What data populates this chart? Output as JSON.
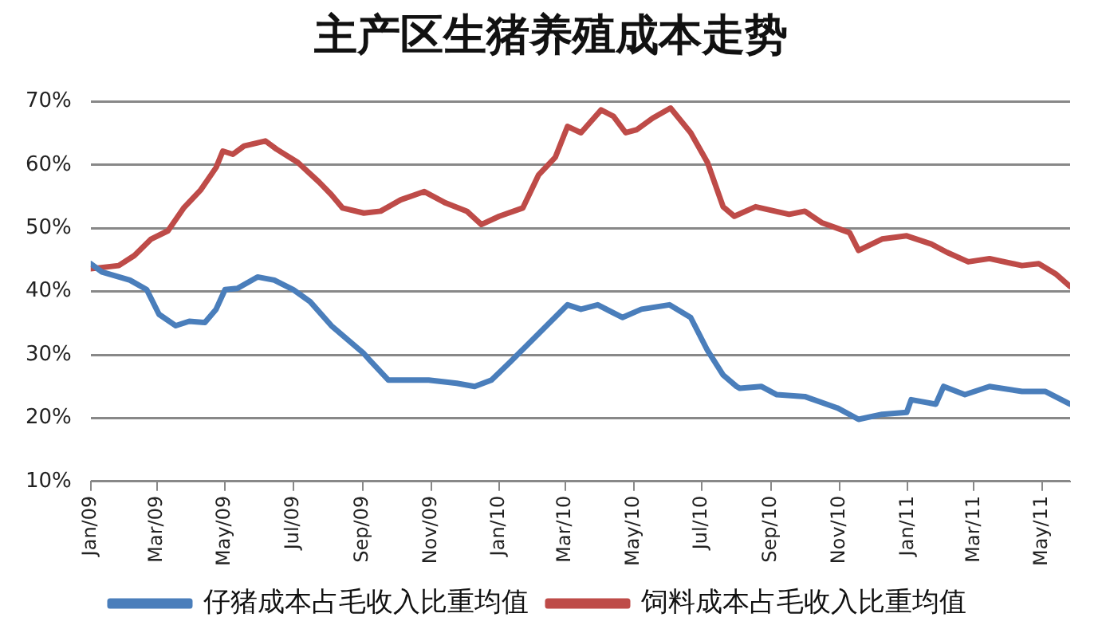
{
  "chart_data": {
    "type": "line",
    "title": "主产区生猪养殖成本走势",
    "xlim": [
      "2009-01-01",
      "2011-05-26"
    ],
    "xticks": [
      {
        "value": "2009-01",
        "label": "Jan/09"
      },
      {
        "value": "2009-03",
        "label": "Mar/09"
      },
      {
        "value": "2009-05",
        "label": "May/09"
      },
      {
        "value": "2009-07",
        "label": "Jul/09"
      },
      {
        "value": "2009-09",
        "label": "Sep/09"
      },
      {
        "value": "2009-11",
        "label": "Nov/09"
      },
      {
        "value": "2010-01",
        "label": "Jan/10"
      },
      {
        "value": "2010-03",
        "label": "Mar/10"
      },
      {
        "value": "2010-05",
        "label": "May/10"
      },
      {
        "value": "2010-07",
        "label": "Jul/10"
      },
      {
        "value": "2010-09",
        "label": "Sep/10"
      },
      {
        "value": "2010-11",
        "label": "Nov/10"
      },
      {
        "value": "2011-01",
        "label": "Jan/11"
      },
      {
        "value": "2011-03",
        "label": "Mar/11"
      },
      {
        "value": "2011-05",
        "label": "May/11"
      }
    ],
    "ylim": [
      10,
      70
    ],
    "yticks": [
      {
        "value": 10,
        "label": "10%"
      },
      {
        "value": 20,
        "label": "20%"
      },
      {
        "value": 30,
        "label": "30%"
      },
      {
        "value": 40,
        "label": "40%"
      },
      {
        "value": 50,
        "label": "50%"
      },
      {
        "value": 60,
        "label": "60%"
      },
      {
        "value": 70,
        "label": "70%"
      }
    ],
    "grid": "y",
    "legend": "bottom",
    "marker": "none",
    "line_style": "solid",
    "series": [
      {
        "name": "仔猪成本占毛收入比重均值",
        "color": "#4a7ebb",
        "x": [
          "2009-01-01",
          "2009-01-11",
          "2009-02-05",
          "2009-02-20",
          "2009-03-03",
          "2009-03-18",
          "2009-03-30",
          "2009-04-13",
          "2009-04-23",
          "2009-05-01",
          "2009-05-12",
          "2009-05-30",
          "2009-06-14",
          "2009-07-01",
          "2009-07-16",
          "2009-08-04",
          "2009-09-02",
          "2009-09-06",
          "2009-09-24",
          "2009-10-30",
          "2009-11-24",
          "2009-12-10",
          "2009-12-25",
          "2010-01-11",
          "2010-02-05",
          "2010-03-03",
          "2010-03-15",
          "2010-03-30",
          "2010-04-21",
          "2010-05-08",
          "2010-06-02",
          "2010-06-21",
          "2010-07-06",
          "2010-07-20",
          "2010-08-01",
          "2010-08-04",
          "2010-08-23",
          "2010-09-06",
          "2010-10-01",
          "2010-10-30",
          "2010-11-18",
          "2010-12-09",
          "2010-12-31",
          "2011-01-04",
          "2011-01-26",
          "2011-02-02",
          "2011-02-21",
          "2011-03-15",
          "2011-04-13",
          "2011-05-04",
          "2011-05-26"
        ],
        "values": [
          44.4,
          43.1,
          41.8,
          40.3,
          36.4,
          34.6,
          35.3,
          35.1,
          37.2,
          40.3,
          40.5,
          42.3,
          41.8,
          40.3,
          38.4,
          34.6,
          30.2,
          29.4,
          26,
          26,
          25.5,
          25,
          26,
          28.9,
          33.3,
          37.9,
          37.2,
          37.9,
          35.9,
          37.2,
          37.9,
          35.9,
          30.7,
          26.8,
          25,
          24.7,
          25,
          23.7,
          23.4,
          21.6,
          19.8,
          20.6,
          20.9,
          22.9,
          22.2,
          25,
          23.7,
          25,
          24.2,
          24.2,
          22.2
        ]
      },
      {
        "name": "饲料成本占毛收入比重均值",
        "color": "#be4b48",
        "x": [
          "2009-01-01",
          "2009-01-26",
          "2009-02-09",
          "2009-02-24",
          "2009-03-11",
          "2009-03-25",
          "2009-04-09",
          "2009-04-23",
          "2009-04-29",
          "2009-05-08",
          "2009-05-18",
          "2009-06-06",
          "2009-06-16",
          "2009-07-05",
          "2009-07-24",
          "2009-08-04",
          "2009-08-14",
          "2009-09-02",
          "2009-09-17",
          "2009-10-05",
          "2009-10-26",
          "2009-11-14",
          "2009-12-03",
          "2009-12-16",
          "2010-01-01",
          "2010-01-22",
          "2010-02-05",
          "2010-02-20",
          "2010-03-03",
          "2010-03-15",
          "2010-04-02",
          "2010-04-13",
          "2010-04-24",
          "2010-05-04",
          "2010-05-18",
          "2010-06-03",
          "2010-06-21",
          "2010-07-06",
          "2010-07-20",
          "2010-07-30",
          "2010-08-18",
          "2010-09-17",
          "2010-10-01",
          "2010-10-16",
          "2010-11-10",
          "2010-11-18",
          "2010-12-09",
          "2010-12-31",
          "2011-01-22",
          "2011-02-05",
          "2011-02-24",
          "2011-03-15",
          "2011-04-13",
          "2011-04-28",
          "2011-05-13",
          "2011-05-26"
        ],
        "values": [
          43.6,
          44.1,
          45.7,
          48.3,
          49.6,
          53.2,
          56,
          59.6,
          62.2,
          61.7,
          63,
          63.8,
          62.5,
          60.4,
          57.3,
          55.3,
          53.2,
          52.4,
          52.7,
          54.5,
          55.8,
          54,
          52.7,
          50.6,
          51.9,
          53.2,
          58.4,
          61.2,
          66.1,
          65.1,
          68.7,
          67.7,
          65.1,
          65.6,
          67.4,
          69,
          65.1,
          60.4,
          53.4,
          51.9,
          53.4,
          52.2,
          52.7,
          50.9,
          49.3,
          46.5,
          48.3,
          48.8,
          47.5,
          46.2,
          44.7,
          45.2,
          44.1,
          44.4,
          42.8,
          40.8
        ]
      }
    ]
  }
}
